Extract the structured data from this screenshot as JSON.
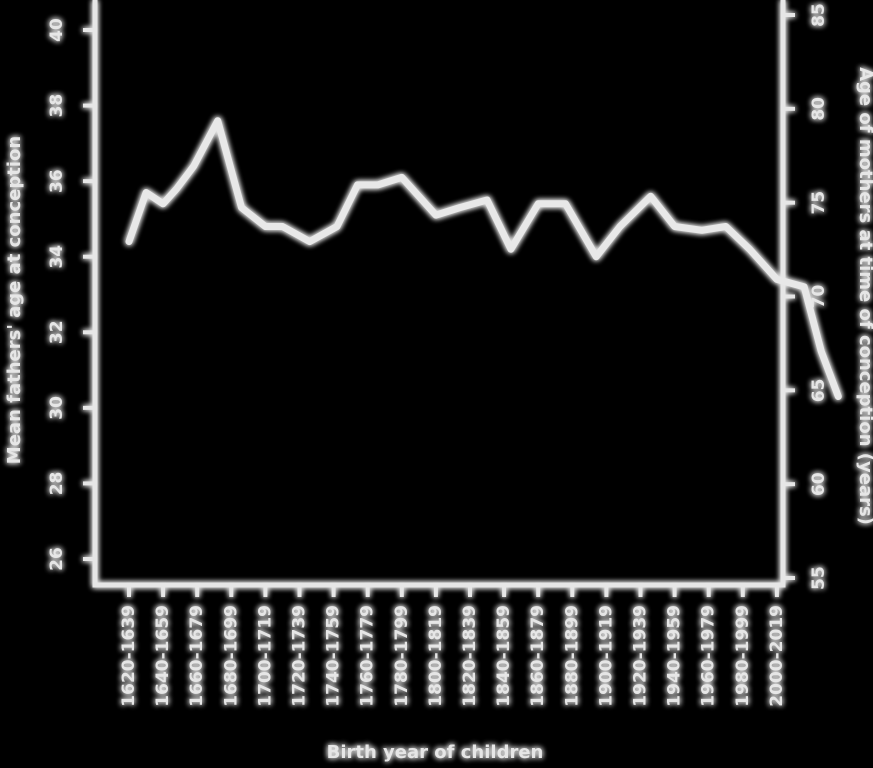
{
  "chart_data": {
    "type": "line",
    "xlabel": "Birth year of children",
    "ylabel_left": "Mean fathers' age at conception",
    "ylabel_right": "Age of mothers at time of conception (years)",
    "categories": [
      "1620-1639",
      "1640-1659",
      "1660-1679",
      "1680-1699",
      "1700-1719",
      "1720-1739",
      "1740-1759",
      "1760-1779",
      "1780-1799",
      "1800-1819",
      "1820-1839",
      "1840-1859",
      "1860-1879",
      "1880-1899",
      "1900-1919",
      "1920-1939",
      "1940-1959",
      "1960-1979",
      "1980-1999",
      "2000-2019"
    ],
    "left_axis": {
      "ticks": [
        "40",
        "38",
        "36",
        "34",
        "32",
        "30",
        "28",
        "26"
      ],
      "ylim": [
        26,
        41
      ]
    },
    "right_axis": {
      "ticks": [
        "85",
        "80",
        "75",
        "70",
        "65",
        "60",
        "55"
      ],
      "ylim": [
        55,
        85
      ]
    },
    "series": [
      {
        "axis": "left",
        "x": [
          0,
          0.5,
          1,
          1.4,
          1.9,
          2.6,
          3.3,
          4.0,
          4.5,
          5.3,
          6.1,
          6.7,
          7.3,
          8.0,
          9.0,
          9.7,
          10.5,
          11.2,
          12.0,
          12.8,
          13.7,
          14.4,
          15.3,
          16.0,
          16.8,
          17.5,
          18.2,
          19.0,
          19.8,
          20.3,
          20.8
        ],
        "y": [
          34.4,
          35.7,
          35.4,
          35.8,
          36.4,
          37.6,
          35.3,
          34.8,
          34.8,
          34.4,
          34.8,
          35.9,
          35.9,
          36.1,
          35.1,
          35.3,
          35.5,
          34.2,
          35.4,
          35.4,
          34.0,
          34.8,
          35.6,
          34.8,
          34.7,
          34.8,
          34.2,
          33.4,
          33.2,
          31.5,
          30.3
        ]
      }
    ]
  }
}
